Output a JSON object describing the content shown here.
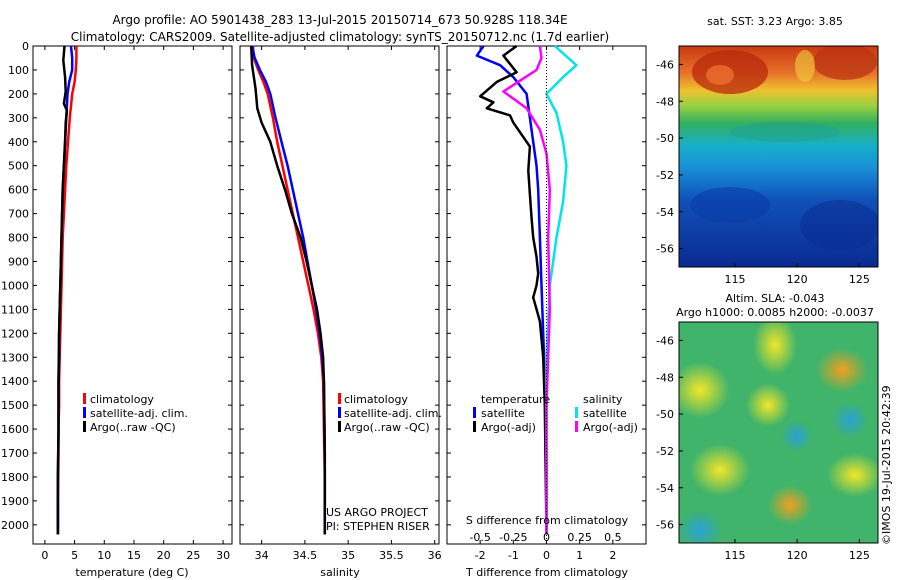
{
  "header": {
    "title_line1": "Argo profile: AO 5901438_283 13-Jul-2015 20150714_673 50.928S 118.34E",
    "title_line2": "Climatology: CARS2009. Satellite-adjusted climatology: synTS_20150712.nc (1.7d earlier)"
  },
  "colors": {
    "climatology": "#ff0000",
    "satellite_adj": "#0000ff",
    "argo": "#000000",
    "satellite_salinity": "#00e5e5",
    "argo_salinity_adj": "#ff00ff"
  },
  "chart_data": [
    {
      "type": "line",
      "name": "temperature",
      "xlabel": "temperature (deg C)",
      "ylabel": "",
      "xlim": [
        -2,
        31.5
      ],
      "ylim": [
        2080,
        0
      ],
      "xticks": [
        0,
        5,
        10,
        15,
        20,
        25,
        30
      ],
      "yticks": [
        0,
        100,
        200,
        300,
        400,
        500,
        600,
        700,
        800,
        900,
        1000,
        1100,
        1200,
        1300,
        1400,
        1500,
        1600,
        1700,
        1800,
        1900,
        2000
      ],
      "legend": [
        "climatology",
        "satellite-adj. clim.",
        "Argo(..raw -QC)"
      ],
      "series": [
        {
          "name": "climatology",
          "color": "#ff0000",
          "x": [
            5.3,
            5.3,
            5.2,
            5.0,
            4.6,
            4.2,
            3.9,
            3.6,
            3.4,
            3.2,
            3.0,
            2.9,
            2.8,
            2.7,
            2.6,
            2.5,
            2.4,
            2.4,
            2.3,
            2.3,
            2.2,
            2.2
          ],
          "y": [
            0,
            50,
            100,
            150,
            200,
            300,
            400,
            500,
            600,
            700,
            800,
            900,
            1000,
            1100,
            1200,
            1300,
            1400,
            1500,
            1600,
            1700,
            1900,
            2040
          ]
        },
        {
          "name": "satellite-adj. clim.",
          "color": "#0000ff",
          "x": [
            4.4,
            4.6,
            4.6,
            4.1,
            3.8,
            3.6,
            3.4,
            3.2,
            3.0,
            2.9,
            2.8,
            2.7,
            2.6,
            2.5,
            2.4,
            2.4,
            2.3,
            2.3,
            2.2,
            2.2
          ],
          "y": [
            0,
            50,
            100,
            150,
            200,
            300,
            400,
            500,
            600,
            700,
            800,
            900,
            1000,
            1100,
            1200,
            1300,
            1400,
            1600,
            1800,
            2040
          ]
        },
        {
          "name": "Argo(..raw -QC)",
          "color": "#000000",
          "x": [
            3.3,
            3.1,
            3.4,
            3.5,
            3.2,
            3.7,
            3.5,
            3.4,
            3.2,
            3.0,
            2.9,
            2.8,
            2.7,
            2.6,
            2.5,
            2.4,
            2.3,
            2.3,
            2.2,
            2.2
          ],
          "y": [
            0,
            60,
            130,
            190,
            240,
            270,
            320,
            400,
            500,
            600,
            700,
            800,
            900,
            1000,
            1100,
            1200,
            1400,
            1600,
            1800,
            2040
          ]
        }
      ]
    },
    {
      "type": "line",
      "name": "salinity",
      "xlabel": "salinity",
      "ylabel": "",
      "xlim": [
        33.75,
        36.05
      ],
      "ylim": [
        2080,
        0
      ],
      "xticks": [
        34,
        34.5,
        35,
        35.5,
        36
      ],
      "legend": [
        "climatology",
        "satellite-adj. clim.",
        "Argo(..raw -QC)"
      ],
      "annotation_line1": "US ARGO PROJECT",
      "annotation_line2": "PI: STEPHEN RISER",
      "series": [
        {
          "name": "climatology",
          "color": "#ff0000",
          "x": [
            33.9,
            33.91,
            33.96,
            34.02,
            34.07,
            34.13,
            34.18,
            34.24,
            34.3,
            34.36,
            34.42,
            34.48,
            34.54,
            34.6,
            34.65,
            34.69,
            34.71,
            34.72,
            34.73,
            34.73
          ],
          "y": [
            0,
            50,
            100,
            150,
            200,
            300,
            400,
            500,
            600,
            700,
            800,
            900,
            1000,
            1100,
            1200,
            1300,
            1400,
            1600,
            1800,
            2040
          ]
        },
        {
          "name": "satellite-adj. clim.",
          "color": "#0000ff",
          "x": [
            33.89,
            33.92,
            33.98,
            34.05,
            34.1,
            34.16,
            34.23,
            34.3,
            34.36,
            34.42,
            34.48,
            34.53,
            34.58,
            34.63,
            34.67,
            34.7,
            34.72,
            34.73,
            34.73
          ],
          "y": [
            0,
            50,
            100,
            150,
            200,
            300,
            400,
            500,
            600,
            700,
            800,
            900,
            1000,
            1100,
            1200,
            1300,
            1400,
            1700,
            2040
          ]
        },
        {
          "name": "Argo(..raw -QC)",
          "color": "#000000",
          "x": [
            33.88,
            33.89,
            33.93,
            33.95,
            34.0,
            34.1,
            34.18,
            34.27,
            34.35,
            34.45,
            34.52,
            34.58,
            34.64,
            34.68,
            34.71,
            34.72,
            34.73,
            34.73
          ],
          "y": [
            0,
            80,
            180,
            260,
            320,
            400,
            500,
            600,
            700,
            800,
            900,
            1000,
            1100,
            1200,
            1300,
            1400,
            1700,
            2040
          ]
        }
      ]
    },
    {
      "type": "line",
      "name": "difference",
      "xlabel": "T difference from climatology",
      "ylabel": "",
      "top_label": "S difference from climatology",
      "xlim": [
        -3.0,
        3.0
      ],
      "ylim": [
        2080,
        0
      ],
      "xticks": [
        -2,
        -1,
        0,
        1,
        2
      ],
      "xticklabels": [
        "-2",
        "-1",
        "0",
        "1",
        "2"
      ],
      "s_ticks": [
        "-0.5",
        "-0.25",
        "0",
        "0.25",
        "0.5"
      ],
      "legend_temperature_title": "temperature",
      "legend_salinity_title": "salinity",
      "legend": [
        "satellite",
        "Argo(-adj)",
        "satellite",
        "Argo(-adj)"
      ],
      "series": [
        {
          "name": "satellite",
          "group": "temperature",
          "color": "#0000ff",
          "x": [
            -1.9,
            -2.1,
            -1.4,
            -1.0,
            -0.6,
            -0.5,
            -0.4,
            -0.3,
            -0.25,
            -0.2,
            -0.15,
            -0.1,
            -0.05,
            0.0,
            0.0
          ],
          "y": [
            0,
            40,
            80,
            130,
            200,
            300,
            400,
            500,
            600,
            800,
            1000,
            1200,
            1400,
            1700,
            2040
          ]
        },
        {
          "name": "Argo(-adj)",
          "group": "temperature",
          "color": "#000000",
          "x": [
            -0.9,
            -1.3,
            -0.9,
            -1.5,
            -2.0,
            -1.6,
            -1.8,
            -1.1,
            -1.0,
            -0.5,
            -0.55,
            -0.5,
            -0.45,
            -0.4,
            -0.3,
            -0.25,
            -0.3,
            -0.4,
            -0.2,
            -0.1,
            -0.05,
            0.0
          ],
          "y": [
            0,
            40,
            110,
            150,
            210,
            235,
            260,
            290,
            320,
            420,
            520,
            620,
            720,
            800,
            880,
            950,
            1000,
            1050,
            1150,
            1300,
            1500,
            2040
          ]
        },
        {
          "name": "satellite",
          "group": "salinity",
          "color": "#00e5e5",
          "x": [
            0.25,
            0.9,
            0.5,
            0.0,
            0.3,
            0.5,
            0.6,
            0.5,
            0.3,
            0.1,
            0.0,
            0.0
          ],
          "y": [
            0,
            80,
            130,
            200,
            280,
            400,
            500,
            650,
            800,
            1000,
            1300,
            2040
          ]
        },
        {
          "name": "Argo(-adj)",
          "group": "salinity",
          "color": "#ff00ff",
          "x": [
            -0.2,
            -0.15,
            -0.3,
            -1.3,
            -0.6,
            -0.2,
            0.0,
            0.1,
            0.05,
            0.1,
            0.0,
            0.0
          ],
          "y": [
            0,
            50,
            100,
            190,
            260,
            350,
            450,
            600,
            800,
            1100,
            1500,
            2040
          ]
        }
      ]
    },
    {
      "type": "heatmap",
      "name": "sst_map",
      "title": "sat. SST: 3.23 Argo: 3.85",
      "xticks": [
        115,
        120,
        125
      ],
      "yticks": [
        -46,
        -48,
        -50,
        -52,
        -54,
        -56
      ],
      "xlim": [
        110.5,
        126.5
      ],
      "ylim": [
        -57,
        -45
      ]
    },
    {
      "type": "heatmap",
      "name": "sla_map",
      "title_line1": "Altim. SLA: -0.043",
      "title_line2": "Argo h1000: 0.0085 h2000: -0.0037",
      "xticks": [
        115,
        120,
        125
      ],
      "yticks": [
        -46,
        -48,
        -50,
        -52,
        -54,
        -56
      ],
      "xlim": [
        110.5,
        126.5
      ],
      "ylim": [
        -57,
        -45
      ]
    }
  ],
  "credit": "©IMOS 19-Jul-2015 20:42:39"
}
